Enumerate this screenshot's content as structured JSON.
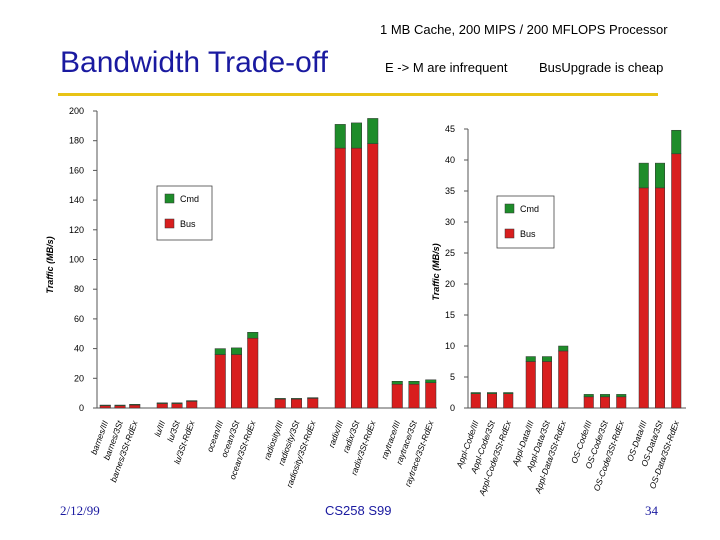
{
  "header": {
    "subtitle": "1 MB Cache, 200 MIPS / 200 MFLOPS Processor",
    "title": "Bandwidth Trade-off",
    "note_left": "E -> M are infrequent",
    "note_right": "BusUpgrade is cheap",
    "rule_color": "#e8c316"
  },
  "footer": {
    "date": "2/12/99",
    "course": "CS258 S99",
    "page": "34"
  },
  "colors": {
    "cmd": "#1e8c2a",
    "bus": "#d81e1e"
  },
  "chart_data": [
    {
      "type": "bar",
      "stacked": true,
      "ylabel": "Traffic (MB/s)",
      "ylim": [
        0,
        200
      ],
      "yticks": [
        0,
        20,
        40,
        60,
        80,
        100,
        120,
        140,
        160,
        180,
        200
      ],
      "legend": [
        "Cmd",
        "Bus"
      ],
      "legend_position": "top-left",
      "categories": [
        "barnes/III",
        "barnes/3St",
        "barnes/3St-RdEx",
        "lu/III",
        "lu/3St",
        "lu/3St-RdEx",
        "ocean/III",
        "ocean/3St",
        "ocean/3St-RdEx",
        "radiosity/III",
        "radiosity/3St",
        "radiosity/3St-RdEx",
        "radix/III",
        "radix/3St",
        "radix/3St-RdEx",
        "raytrace/III",
        "raytrace/3St",
        "raytrace/3St-RdEx"
      ],
      "series": [
        {
          "name": "Bus",
          "values": [
            1.5,
            1.5,
            2,
            3,
            3,
            4.5,
            36,
            36,
            47,
            6,
            6,
            6.5,
            175,
            175,
            178,
            16,
            16,
            17
          ]
        },
        {
          "name": "Cmd",
          "values": [
            0.5,
            0.5,
            0.5,
            0.5,
            0.5,
            0.5,
            4,
            4.5,
            4,
            0.5,
            0.5,
            0.5,
            16,
            17,
            17,
            2,
            2,
            2
          ]
        }
      ]
    },
    {
      "type": "bar",
      "stacked": true,
      "ylabel": "Traffic (MB/s)",
      "ylim": [
        0,
        45
      ],
      "yticks": [
        0,
        5,
        10,
        15,
        20,
        25,
        30,
        35,
        40,
        45
      ],
      "legend": [
        "Cmd",
        "Bus"
      ],
      "legend_position": "top-left",
      "categories": [
        "Appl-Code/III",
        "Appl-Code/3St",
        "Appl-Code/3St-RdEx",
        "Appl-Data/III",
        "Appl-Data/3St",
        "Appl-Data/3St-RdEx",
        "OS-Code/III",
        "OS-Code/3St",
        "OS-Code/3St-RdEx",
        "OS-Data/III",
        "OS-Data/3St",
        "OS-Data/3St-RdEx"
      ],
      "series": [
        {
          "name": "Bus",
          "values": [
            2.3,
            2.3,
            2.3,
            7.5,
            7.5,
            9.2,
            1.8,
            1.8,
            1.8,
            35.5,
            35.5,
            41
          ]
        },
        {
          "name": "Cmd",
          "values": [
            0.2,
            0.2,
            0.2,
            0.8,
            0.8,
            0.8,
            0.4,
            0.4,
            0.4,
            4,
            4,
            3.8
          ]
        }
      ]
    }
  ]
}
